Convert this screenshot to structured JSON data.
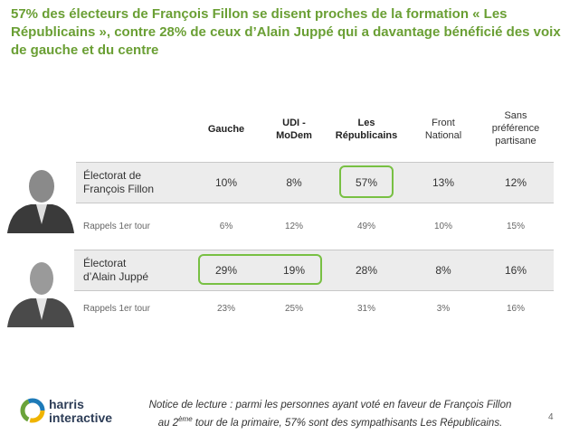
{
  "header": {
    "title": "57% des électeurs de François Fillon se disent proches de la formation « Les Républicains », contre 28% de ceux d’Alain Juppé qui a davantage bénéficié des voix de gauche et du centre"
  },
  "table": {
    "columns": [
      "Gauche",
      "UDI -\nMoDem",
      "Les\nRépublicains",
      "Front\nNational",
      "Sans\npréférence\npartisane"
    ],
    "rows": [
      {
        "label": "Électorat de\nFrançois Fillon",
        "cells": [
          "10%",
          "8%",
          "57%",
          "13%",
          "12%"
        ]
      },
      {
        "label": "Rappels 1er tour",
        "cells": [
          "6%",
          "12%",
          "49%",
          "10%",
          "15%"
        ]
      },
      {
        "label": "Électorat\nd’Alain Juppé",
        "cells": [
          "29%",
          "19%",
          "28%",
          "8%",
          "16%"
        ]
      },
      {
        "label": "Rappels 1er tour",
        "cells": [
          "23%",
          "25%",
          "31%",
          "3%",
          "16%"
        ]
      }
    ]
  },
  "footer": {
    "note": [
      "Notice de lecture : parmi les personnes ayant voté en faveur de François Fillon",
      "au 2",
      "ème",
      " tour de la primaire, 57% sont des sympathisants Les Républicains."
    ],
    "logo": [
      "harris",
      "interactive"
    ],
    "page": "4"
  }
}
